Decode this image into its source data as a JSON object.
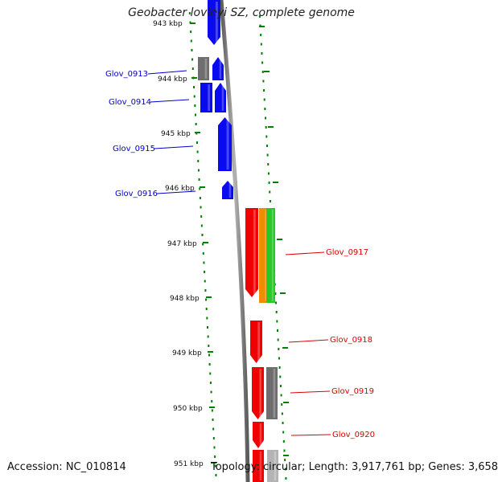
{
  "title": "Geobacter lovleyi SZ, complete genome",
  "accession": "Accession: NC_010814",
  "topology": "Topology: circular; Length: 3,917,761 bp; Genes: 3,658",
  "scale_labels": [
    "943 kbp",
    "944 kbp",
    "945 kbp",
    "946 kbp",
    "947 kbp",
    "948 kbp",
    "949 kbp",
    "950 kbp",
    "951 kbp"
  ],
  "gene_labels": [
    {
      "text": "Glov_0913",
      "color": "#0000cc"
    },
    {
      "text": "Glov_0914",
      "color": "#0000cc"
    },
    {
      "text": "Glov_0915",
      "color": "#0000cc"
    },
    {
      "text": "Glov_0916",
      "color": "#0000cc"
    },
    {
      "text": "Glov_0917",
      "color": "#dd0000"
    },
    {
      "text": "Glov_0918",
      "color": "#dd0000"
    },
    {
      "text": "Glov_0919",
      "color": "#dd0000"
    },
    {
      "text": "Glov_0920",
      "color": "#dd0000"
    }
  ],
  "colors": {
    "blue_gene": "#0a0af0",
    "red_gene": "#f00000",
    "gray_gene": "#6e6e6e",
    "orange_gene": "#f08c00",
    "green_gene": "#28c828",
    "backbone": "#808080",
    "tick": "#008000"
  }
}
